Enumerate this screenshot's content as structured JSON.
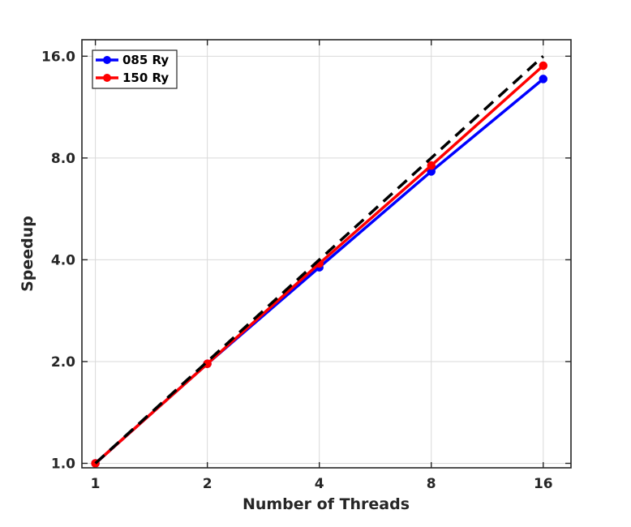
{
  "chart_data": {
    "type": "line",
    "title": "",
    "xlabel": "Number of Threads",
    "ylabel": "Speedup",
    "x_scale": "log2",
    "y_scale": "log2",
    "x": [
      1,
      2,
      4,
      8,
      16
    ],
    "x_tick_labels": [
      "1",
      "2",
      "4",
      "8",
      "16"
    ],
    "y_ticks": [
      1,
      2,
      4,
      8,
      16
    ],
    "y_tick_labels": [
      "1.0",
      "2.0",
      "4.0",
      "8.0",
      "16.0"
    ],
    "xlim": [
      0.92,
      19.0
    ],
    "ylim": [
      0.97,
      17.9
    ],
    "grid": true,
    "legend_position": "top-left",
    "series": [
      {
        "name": "085 Ry",
        "color": "#0000ff",
        "values": [
          1.0,
          1.97,
          3.8,
          7.3,
          13.7
        ],
        "marker": "circle"
      },
      {
        "name": "150 Ry",
        "color": "#ff0000",
        "values": [
          1.0,
          1.97,
          3.9,
          7.6,
          15.0
        ],
        "marker": "circle"
      }
    ],
    "reference_line": {
      "color": "#000000",
      "style": "dashed",
      "x": [
        1,
        16
      ],
      "values": [
        1,
        16
      ]
    }
  }
}
